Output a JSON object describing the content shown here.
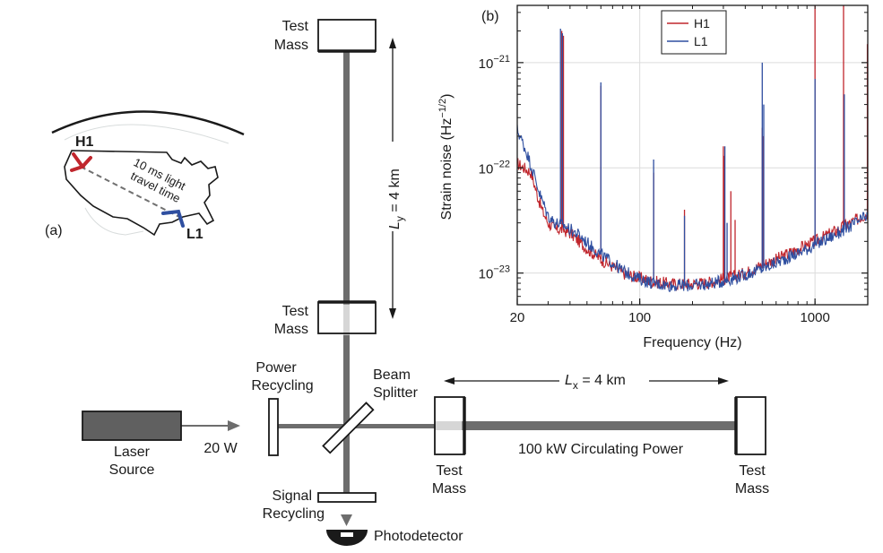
{
  "panel_a": {
    "label": "(a)",
    "site_h1": "H1",
    "site_l1": "L1",
    "travel_line1": "10 ms light",
    "travel_line2": "travel time",
    "colors": {
      "h1": "#c0262d",
      "l1": "#2f4fa0"
    }
  },
  "interferometer": {
    "test_mass_top": [
      "Test",
      "Mass"
    ],
    "test_mass_near_y": [
      "Test",
      "Mass"
    ],
    "ly_label": "L",
    "ly_sub": "y",
    "ly_value": " = 4 km",
    "power_recycling": [
      "Power",
      "Recycling"
    ],
    "beam_splitter": [
      "Beam",
      "Splitter"
    ],
    "lx_label": "L",
    "lx_sub": "x",
    "lx_value": " = 4 km",
    "laser_source": [
      "Laser",
      "Source"
    ],
    "laser_power": "20 W",
    "test_mass_near_x": [
      "Test",
      "Mass"
    ],
    "test_mass_far_x": [
      "Test",
      "Mass"
    ],
    "circulating_power": "100 kW Circulating Power",
    "signal_recycling": [
      "Signal",
      "Recycling"
    ],
    "photodetector": "Photodetector"
  },
  "chart_data": {
    "type": "line",
    "panel_label": "(b)",
    "xlabel": "Frequency (Hz)",
    "ylabel": "Strain noise (Hz",
    "ylabel_sup": "−1/2",
    "ylabel_close": ")",
    "xscale": "log",
    "yscale": "log",
    "xlim": [
      20,
      2000
    ],
    "ylim": [
      5e-24,
      3.5e-21
    ],
    "grid": true,
    "legend_position": "top-center",
    "xticks": [
      {
        "value": 20,
        "label": "20"
      },
      {
        "value": 100,
        "label": "100"
      },
      {
        "value": 1000,
        "label": "1000"
      }
    ],
    "yticks": [
      {
        "value": 1e-23,
        "base": "10",
        "exp": "−23"
      },
      {
        "value": 1e-22,
        "base": "10",
        "exp": "−22"
      },
      {
        "value": 1e-21,
        "base": "10",
        "exp": "−21"
      }
    ],
    "series": [
      {
        "name": "H1",
        "color": "#c0262d",
        "baseline": [
          [
            20,
            1.1e-22
          ],
          [
            24,
            9e-23
          ],
          [
            26,
            5.5e-23
          ],
          [
            28,
            3.8e-23
          ],
          [
            30,
            3e-23
          ],
          [
            33,
            2.6e-23
          ],
          [
            36,
            2.6e-23
          ],
          [
            40,
            2.4e-23
          ],
          [
            45,
            2e-23
          ],
          [
            50,
            1.7e-23
          ],
          [
            60,
            1.35e-23
          ],
          [
            70,
            1.15e-23
          ],
          [
            80,
            1e-23
          ],
          [
            100,
            9e-24
          ],
          [
            120,
            8.3e-24
          ],
          [
            150,
            7.9e-24
          ],
          [
            200,
            7.9e-24
          ],
          [
            250,
            8.2e-24
          ],
          [
            300,
            8.8e-24
          ],
          [
            400,
            1e-23
          ],
          [
            500,
            1.2e-23
          ],
          [
            600,
            1.35e-23
          ],
          [
            800,
            1.7e-23
          ],
          [
            1000,
            2e-23
          ],
          [
            1300,
            2.5e-23
          ],
          [
            1600,
            3e-23
          ],
          [
            2000,
            3.7e-23
          ]
        ],
        "peaks": [
          [
            35.9,
            2e-21
          ],
          [
            36.7,
            1.8e-21
          ],
          [
            60,
            6e-22
          ],
          [
            120,
            9e-23
          ],
          [
            180,
            4e-23
          ],
          [
            300,
            1.6e-22
          ],
          [
            303,
            1.3e-22
          ],
          [
            331,
            6e-23
          ],
          [
            350,
            3.2e-23
          ],
          [
            500,
            2.4e-22
          ],
          [
            505,
            2e-22
          ],
          [
            1000,
            3.5e-21
          ],
          [
            1455,
            3.5e-21
          ],
          [
            1990,
            1.5e-21
          ]
        ]
      },
      {
        "name": "L1",
        "color": "#2f4fa0",
        "baseline": [
          [
            20,
            2.3e-22
          ],
          [
            21,
            1.9e-22
          ],
          [
            23,
            1.3e-22
          ],
          [
            25,
            8.5e-23
          ],
          [
            27,
            5.5e-23
          ],
          [
            30,
            3.5e-23
          ],
          [
            33,
            3e-23
          ],
          [
            36,
            2.9e-23
          ],
          [
            40,
            2.6e-23
          ],
          [
            45,
            2.3e-23
          ],
          [
            50,
            1.95e-23
          ],
          [
            60,
            1.5e-23
          ],
          [
            70,
            1.25e-23
          ],
          [
            80,
            1.05e-23
          ],
          [
            100,
            8.8e-24
          ],
          [
            120,
            8e-24
          ],
          [
            150,
            7.6e-24
          ],
          [
            200,
            7.6e-24
          ],
          [
            250,
            7.9e-24
          ],
          [
            300,
            8.4e-24
          ],
          [
            400,
            9.6e-24
          ],
          [
            500,
            1.1e-23
          ],
          [
            600,
            1.25e-23
          ],
          [
            800,
            1.55e-23
          ],
          [
            1000,
            1.85e-23
          ],
          [
            1300,
            2.3e-23
          ],
          [
            1600,
            2.8e-23
          ],
          [
            2000,
            3.5e-23
          ]
        ],
        "peaks": [
          [
            35.3,
            2.1e-21
          ],
          [
            36.2,
            1.9e-21
          ],
          [
            60,
            6.5e-22
          ],
          [
            120,
            1.2e-22
          ],
          [
            180,
            3.5e-23
          ],
          [
            306,
            1.6e-22
          ],
          [
            315,
            3e-23
          ],
          [
            500,
            1e-21
          ],
          [
            510,
            4e-22
          ],
          [
            1000,
            7e-22
          ],
          [
            1470,
            5e-22
          ]
        ]
      }
    ]
  }
}
